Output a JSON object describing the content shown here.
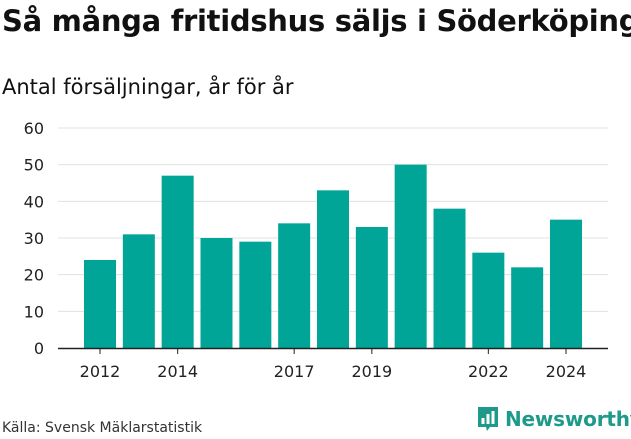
{
  "title": "Så många fritidshus säljs i Söderköping",
  "subtitle": "Antal försäljningar, år för år",
  "source": "Källa: Svensk Mäklarstatistik",
  "brand": {
    "name": "Newsworthy",
    "icon": "bar-chart-icon",
    "color": "#1e9a8a"
  },
  "colors": {
    "bar": "#00a598",
    "grid": "#e0e0e0",
    "axis": "#222222"
  },
  "chart_data": {
    "type": "bar",
    "title": "Så många fritidshus säljs i Söderköping",
    "subtitle": "Antal försäljningar, år för år",
    "xlabel": "",
    "ylabel": "",
    "x": [
      2012,
      2013,
      2014,
      2015,
      2016,
      2017,
      2018,
      2019,
      2020,
      2021,
      2022,
      2023,
      2024
    ],
    "values": [
      24,
      31,
      47,
      30,
      29,
      34,
      43,
      33,
      50,
      38,
      26,
      22,
      35
    ],
    "ylim": [
      0,
      60
    ],
    "yticks": [
      0,
      10,
      20,
      30,
      40,
      50,
      60
    ],
    "xtick_labels": [
      "2012",
      "2014",
      "2017",
      "2019",
      "2022",
      "2024"
    ],
    "grid": true
  }
}
